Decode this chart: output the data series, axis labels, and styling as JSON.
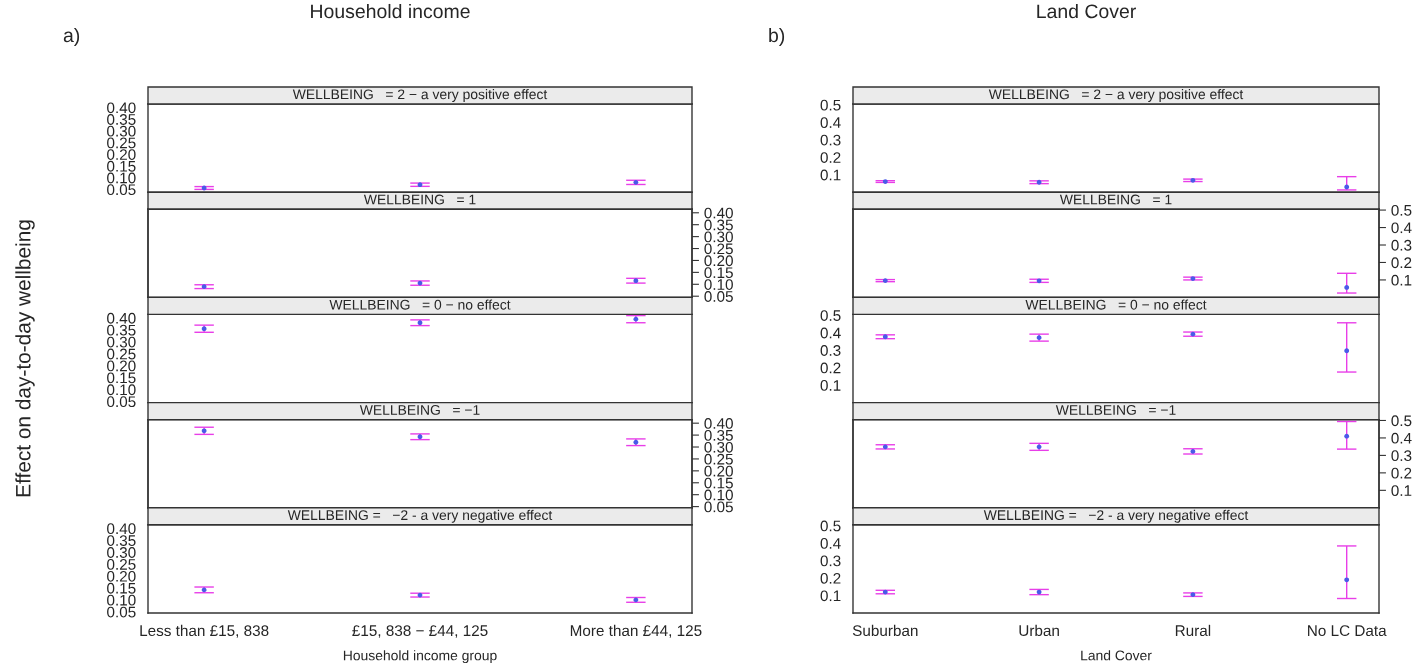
{
  "chart_data": [
    {
      "type": "scatter",
      "title": "WELLBEING   = 2 − a very positive effect",
      "annotations": [
        "a)",
        "Household income"
      ],
      "ylabel": "Effect on day-to-day wellbeing",
      "categories": [
        null,
        null,
        null
      ],
      "marker": "circle",
      "tick_labels": "y",
      "ylim": [
        0.038,
        0.415
      ],
      "yticks": [
        0.05,
        {
          "value": 0.1,
          "label": "0.10"
        },
        0.15,
        {
          "value": 0.2,
          "label": "0.20"
        },
        0.25,
        {
          "value": 0.3,
          "label": "0.30"
        },
        0.35,
        {
          "value": 0.4,
          "label": "0.40"
        }
      ],
      "series": [
        {
          "color": "#4a5ae8",
          "values": [
            0.056,
            0.07,
            0.08
          ],
          "errors": [
            0.006,
            0.007,
            0.009
          ]
        }
      ]
    },
    {
      "type": "scatter",
      "title": "WELLBEING   = 1",
      "categories": [
        null,
        null,
        null
      ],
      "marker": "circle",
      "tick_labels": "y",
      "y2lim": [
        0.045,
        0.415
      ],
      "y2ticks": [
        0.05,
        {
          "value": 0.1,
          "label": "0.10"
        },
        0.15,
        {
          "value": 0.2,
          "label": "0.20"
        },
        0.25,
        {
          "value": 0.3,
          "label": "0.30"
        },
        0.35,
        {
          "value": 0.4,
          "label": "0.40"
        }
      ],
      "series": [
        {
          "color": "#4a5ae8",
          "axis": "y2",
          "values": [
            0.09,
            0.105,
            0.115
          ],
          "errors": [
            0.008,
            0.009,
            0.01
          ]
        }
      ]
    },
    {
      "type": "scatter",
      "title": "WELLBEING   = 0 − no effect",
      "categories": [
        null,
        null,
        null
      ],
      "marker": "circle",
      "tick_labels": "y",
      "ylim": [
        0.045,
        0.415
      ],
      "yticks": [
        0.05,
        {
          "value": 0.1,
          "label": "0.10"
        },
        0.15,
        {
          "value": 0.2,
          "label": "0.20"
        },
        0.25,
        {
          "value": 0.3,
          "label": "0.30"
        },
        0.35,
        {
          "value": 0.4,
          "label": "0.40"
        }
      ],
      "series": [
        {
          "color": "#4a5ae8",
          "values": [
            0.355,
            0.38,
            0.395
          ],
          "errors": [
            0.015,
            0.012,
            0.015
          ]
        }
      ]
    },
    {
      "type": "scatter",
      "title": "WELLBEING   = −1",
      "categories": [
        null,
        null,
        null
      ],
      "marker": "circle",
      "tick_labels": "y",
      "y2lim": [
        0.045,
        0.415
      ],
      "y2ticks": [
        0.05,
        {
          "value": 0.1,
          "label": "0.10"
        },
        0.15,
        {
          "value": 0.2,
          "label": "0.20"
        },
        0.25,
        {
          "value": 0.3,
          "label": "0.30"
        },
        0.35,
        {
          "value": 0.4,
          "label": "0.40"
        }
      ],
      "series": [
        {
          "color": "#4a5ae8",
          "axis": "y2",
          "values": [
            0.368,
            0.343,
            0.32
          ],
          "errors": [
            0.015,
            0.012,
            0.014
          ]
        }
      ]
    },
    {
      "type": "scatter",
      "title": "WELLBEING =   −2 - a very negative effect",
      "xlabel": "Household income group",
      "categories": [
        "Less than £15, 838",
        "£15, 838 − £44, 125",
        "More than £44, 125"
      ],
      "marker": "circle",
      "ylim": [
        0.045,
        0.415
      ],
      "yticks": [
        0.05,
        {
          "value": 0.1,
          "label": "0.10"
        },
        0.15,
        {
          "value": 0.2,
          "label": "0.20"
        },
        0.25,
        {
          "value": 0.3,
          "label": "0.30"
        },
        0.35,
        {
          "value": 0.4,
          "label": "0.40"
        }
      ],
      "series": [
        {
          "color": "#4a5ae8",
          "values": [
            0.142,
            0.12,
            0.1
          ],
          "errors": [
            0.012,
            0.008,
            0.01
          ]
        }
      ]
    },
    {
      "type": "scatter",
      "title": "WELLBEING   = 2 − a very positive effect",
      "annotations": [
        "b)",
        "Land Cover"
      ],
      "categories": [
        null,
        null,
        null,
        null
      ],
      "marker": "circle",
      "tick_labels": "y",
      "ylim": [
        0.0,
        0.505
      ],
      "yticks": [
        0.1,
        0.2,
        0.3,
        0.4,
        0.5
      ],
      "series": [
        {
          "color": "#4a5ae8",
          "values": [
            0.061,
            0.057,
            0.068,
            0.03
          ],
          "errors": [
            0.005,
            0.008,
            0.007,
            [
              0.013,
              0.089
            ]
          ]
        }
      ]
    },
    {
      "type": "scatter",
      "title": "WELLBEING   = 1",
      "categories": [
        null,
        null,
        null,
        null
      ],
      "marker": "circle",
      "tick_labels": "y",
      "y2lim": [
        0.0,
        0.505
      ],
      "y2ticks": [
        0.1,
        0.2,
        0.3,
        0.4,
        0.5
      ],
      "series": [
        {
          "color": "#4a5ae8",
          "axis": "y2",
          "values": [
            0.096,
            0.095,
            0.108,
            0.057
          ],
          "errors": [
            0.006,
            0.009,
            0.008,
            [
              0.025,
              0.138
            ]
          ]
        }
      ]
    },
    {
      "type": "scatter",
      "title": "WELLBEING   = 0 − no effect",
      "categories": [
        null,
        null,
        null,
        null
      ],
      "marker": "circle",
      "tick_labels": "y",
      "ylim": [
        0.0,
        0.505
      ],
      "yticks": [
        0.1,
        0.2,
        0.3,
        0.4,
        0.5
      ],
      "series": [
        {
          "color": "#4a5ae8",
          "values": [
            0.377,
            0.372,
            0.392,
            0.297
          ],
          "errors": [
            0.011,
            0.02,
            0.012,
            [
              0.175,
              0.457
            ]
          ]
        }
      ]
    },
    {
      "type": "scatter",
      "title": "WELLBEING   = −1",
      "categories": [
        null,
        null,
        null,
        null
      ],
      "marker": "circle",
      "tick_labels": "y",
      "y2lim": [
        0.0,
        0.505
      ],
      "y2ticks": [
        0.1,
        0.2,
        0.3,
        0.4,
        0.5
      ],
      "series": [
        {
          "color": "#4a5ae8",
          "axis": "y2",
          "values": [
            0.349,
            0.349,
            0.323,
            0.41
          ],
          "errors": [
            0.012,
            0.02,
            0.015,
            [
              0.336,
              0.494
            ]
          ]
        }
      ]
    },
    {
      "type": "scatter",
      "title": "WELLBEING =   −2 - a very negative effect",
      "xlabel": "Land Cover",
      "categories": [
        "Suburban",
        "Urban",
        "Rural",
        "No LC Data"
      ],
      "marker": "circle",
      "ylim": [
        0.0,
        0.505
      ],
      "yticks": [
        0.1,
        0.2,
        0.3,
        0.4,
        0.5
      ],
      "series": [
        {
          "color": "#4a5ae8",
          "values": [
            0.12,
            0.12,
            0.105,
            0.19
          ],
          "errors": [
            0.01,
            0.015,
            0.01,
            [
              0.083,
              0.384
            ]
          ]
        }
      ]
    }
  ]
}
